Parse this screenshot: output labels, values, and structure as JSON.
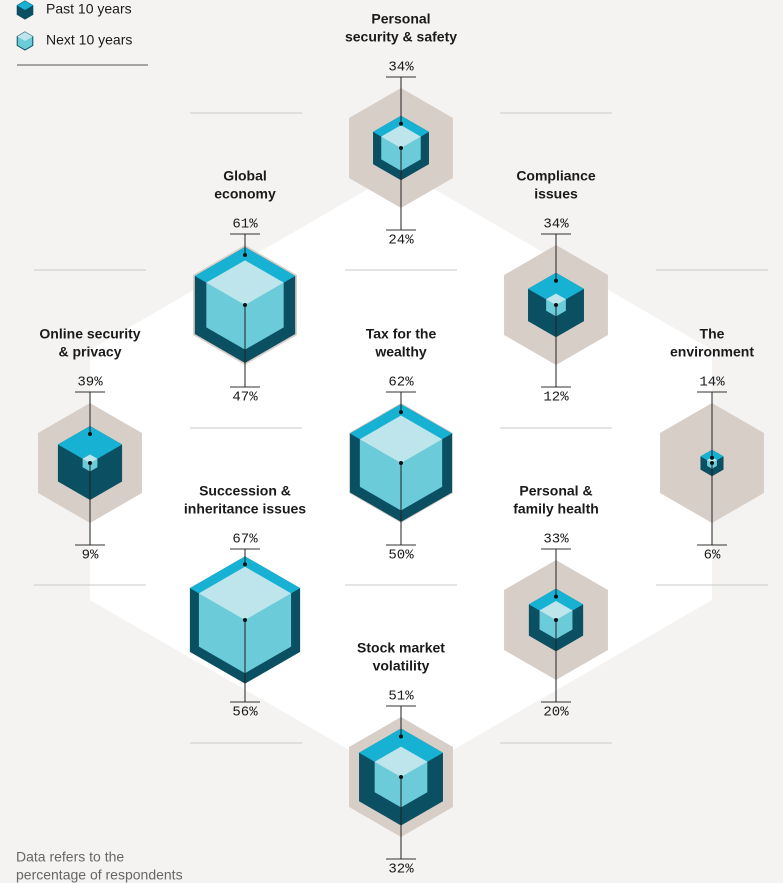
{
  "chart_data": {
    "type": "hexcube",
    "categories": [
      [
        "Personal",
        "security & safety"
      ],
      [
        "Compliance",
        "issues"
      ],
      [
        "The",
        "environment"
      ],
      [
        "Global",
        "economy"
      ],
      [
        "Tax for the",
        "wealthy"
      ],
      [
        "Personal &",
        "family health"
      ],
      [
        "Online security",
        "& privacy"
      ],
      [
        "Succession &",
        "inheritance issues"
      ],
      [
        "Stock market",
        "volatility"
      ]
    ],
    "series": [
      {
        "name": "Past 10 years",
        "color": "#0b4f63",
        "top_color": "#17b2d3",
        "values": [
          34,
          34,
          14,
          61,
          62,
          33,
          39,
          67,
          51
        ],
        "value_labels": [
          "34%",
          "34%",
          "14%",
          "61%",
          "62%",
          "33%",
          "39%",
          "67%",
          "51%"
        ]
      },
      {
        "name": "Next 10 years",
        "color": "#6ccbd9",
        "top_color": "#bde5eb",
        "values": [
          24,
          12,
          6,
          47,
          50,
          20,
          9,
          56,
          32
        ],
        "value_labels": [
          "24%",
          "12%",
          "6%",
          "47%",
          "50%",
          "20%",
          "9%",
          "56%",
          "32%"
        ]
      }
    ],
    "note": [
      "Data refers to the",
      "percentage of respondents"
    ]
  }
}
